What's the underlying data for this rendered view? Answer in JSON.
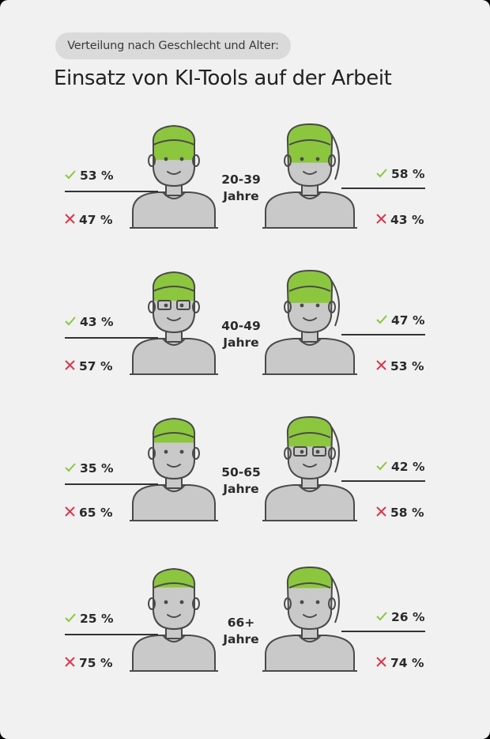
{
  "chart_data": {
    "type": "pictogram",
    "subtitle": "Verteilung nach Geschlecht und Alter:",
    "title": "Einsatz von KI-Tools auf der Arbeit",
    "categories": [
      "20-39 Jahre",
      "40-49 Jahre",
      "50-65 Jahre",
      "66+ Jahre"
    ],
    "series": [
      {
        "gender": "male",
        "yes": [
          53,
          43,
          35,
          25
        ],
        "no": [
          47,
          57,
          65,
          75
        ],
        "yes_labels": [
          "53 %",
          "43 %",
          "35 %",
          "25 %"
        ],
        "no_labels": [
          "47 %",
          "57 %",
          "65 %",
          "75 %"
        ]
      },
      {
        "gender": "female",
        "yes": [
          58,
          47,
          42,
          26
        ],
        "no": [
          43,
          53,
          58,
          74
        ],
        "yes_labels": [
          "58 %",
          "47 %",
          "42 %",
          "26 %"
        ],
        "no_labels": [
          "43 %",
          "53 %",
          "58 %",
          "74 %"
        ]
      }
    ],
    "age_lines": [
      [
        "20-39",
        "Jahre"
      ],
      [
        "40-49",
        "Jahre"
      ],
      [
        "50-65",
        "Jahre"
      ],
      [
        "66+",
        "Jahre"
      ]
    ],
    "colors": {
      "yes": "#8cc63f",
      "no": "#c9c9c9",
      "outline": "#4a4a4a",
      "check": "#8cc63f",
      "cross": "#d8364d"
    },
    "icons": {
      "yes": "check-icon",
      "no": "cross-icon"
    }
  }
}
